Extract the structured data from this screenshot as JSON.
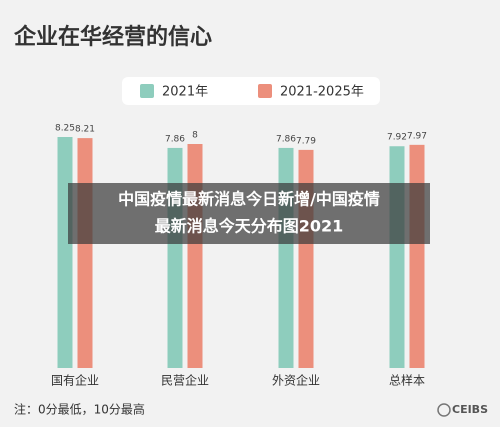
{
  "chart_data": {
    "type": "bar",
    "title": "企业在华经营的信心",
    "categories": [
      "国有企业",
      "民营企业",
      "外资企业",
      "总样本"
    ],
    "series": [
      {
        "name": "2021年",
        "color": "#8ecdbd",
        "values": [
          8.25,
          7.86,
          7.86,
          7.92
        ]
      },
      {
        "name": "2021-2025年",
        "color": "#ec8f7c",
        "values": [
          8.21,
          8,
          7.79,
          7.97
        ]
      }
    ],
    "ylim": [
      0,
      10
    ],
    "note": "注：0分最低，10分最高"
  },
  "overlay": {
    "lines": [
      "中国疫情最新消息今日新增/中国疫情",
      "最新消息今天分布图2021"
    ]
  },
  "logo": "CEIBS"
}
